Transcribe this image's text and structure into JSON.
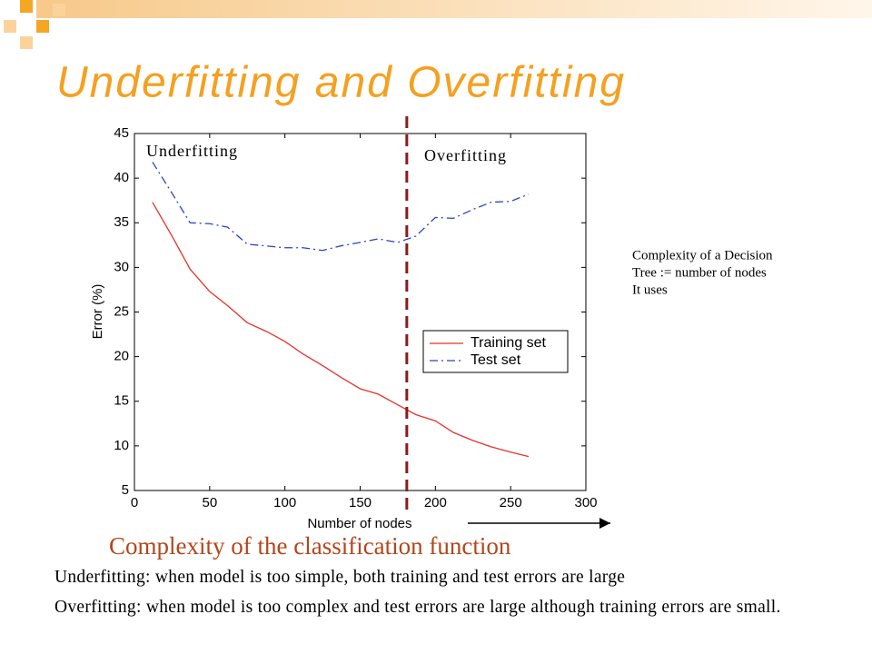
{
  "title": "Underfitting and Overfitting",
  "chart_data": {
    "type": "line",
    "x_label": "Number of nodes",
    "y_label": "Error (%)",
    "x": [
      12,
      25,
      37,
      50,
      62,
      75,
      88,
      100,
      112,
      125,
      137,
      150,
      162,
      175,
      187,
      200,
      212,
      225,
      237,
      250,
      262
    ],
    "series": [
      {
        "name": "Training set",
        "color": "#e8322a",
        "dash": "solid",
        "values": [
          37.3,
          33.5,
          29.8,
          27.3,
          25.7,
          23.8,
          22.8,
          21.7,
          20.3,
          19,
          17.7,
          16.4,
          15.8,
          14.6,
          13.5,
          12.8,
          11.5,
          10.6,
          9.9,
          9.3,
          8.8
        ]
      },
      {
        "name": "Test set",
        "color": "#2b3fd0",
        "dash": "dashdot",
        "values": [
          41.8,
          38.3,
          35,
          34.9,
          34.5,
          32.6,
          32.4,
          32.2,
          32.2,
          31.9,
          32.4,
          32.8,
          33.2,
          32.8,
          33.5,
          35.6,
          35.5,
          36.5,
          37.3,
          37.4,
          38.2
        ]
      }
    ],
    "xlim": [
      0,
      300
    ],
    "xticks": [
      0,
      50,
      100,
      150,
      200,
      250,
      300
    ],
    "ylim": [
      5,
      45
    ],
    "yticks": [
      5,
      10,
      15,
      20,
      25,
      30,
      35,
      40,
      45
    ],
    "grid": false,
    "legend": "lower-right",
    "divider_x": 181,
    "annotations": [
      "Underfitting",
      "Overfitting"
    ]
  },
  "subtitle": "Complexity of the classification function",
  "side_note": [
    "Complexity of a Decision",
    "Tree := number of nodes",
    "It uses"
  ],
  "notes": [
    "Underfitting: when model is too simple, both training and test errors are large",
    "Overfitting: when model is too complex and test errors are large although training errors are small."
  ]
}
